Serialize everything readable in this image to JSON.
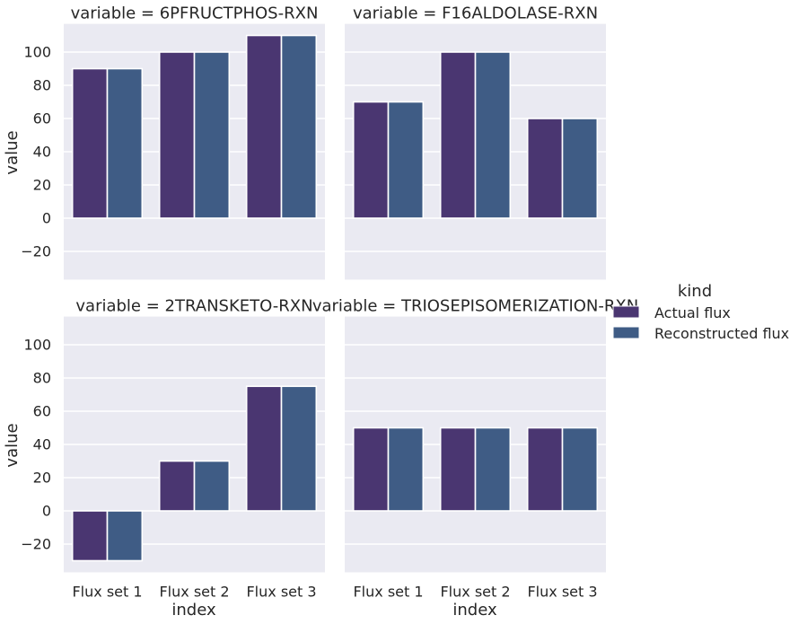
{
  "colors": {
    "panel_bg": "#EAEAF2",
    "grid": "#FFFFFF",
    "bar_edge": "#FFFFFF",
    "text": "#262626",
    "series": [
      "#4A3671",
      "#3F5C85"
    ]
  },
  "legend": {
    "title": "kind",
    "labels": [
      "Actual flux",
      "Reconstructed flux"
    ],
    "placement": "right"
  },
  "axes": {
    "xlabel": "index",
    "ylabel": "value",
    "y_ticks": [
      "−20",
      "0",
      "20",
      "40",
      "60",
      "80",
      "100"
    ],
    "x_ticks": [
      "Flux set 1",
      "Flux set 2",
      "Flux set 3"
    ]
  },
  "chart_data": [
    {
      "type": "bar",
      "title": "variable = 6PFRUCTPHOS-RXN",
      "categories": [
        "Flux set 1",
        "Flux set 2",
        "Flux set 3"
      ],
      "series": [
        {
          "name": "Actual flux",
          "values": [
            90,
            100,
            110
          ]
        },
        {
          "name": "Reconstructed flux",
          "values": [
            90,
            100,
            110
          ]
        }
      ],
      "ylim": [
        -37,
        117
      ],
      "grid": true
    },
    {
      "type": "bar",
      "title": "variable = F16ALDOLASE-RXN",
      "categories": [
        "Flux set 1",
        "Flux set 2",
        "Flux set 3"
      ],
      "series": [
        {
          "name": "Actual flux",
          "values": [
            70,
            100,
            60
          ]
        },
        {
          "name": "Reconstructed flux",
          "values": [
            70,
            100,
            60
          ]
        }
      ],
      "ylim": [
        -37,
        117
      ],
      "grid": true
    },
    {
      "type": "bar",
      "title": "variable = 2TRANSKETO-RXN",
      "categories": [
        "Flux set 1",
        "Flux set 2",
        "Flux set 3"
      ],
      "series": [
        {
          "name": "Actual flux",
          "values": [
            -30,
            30,
            75
          ]
        },
        {
          "name": "Reconstructed flux",
          "values": [
            -30,
            30,
            75
          ]
        }
      ],
      "xlabel": "index",
      "ylabel": "value",
      "ylim": [
        -37,
        117
      ],
      "grid": true
    },
    {
      "type": "bar",
      "title": "variable = TRIOSEPISOMERIZATION-RXN",
      "categories": [
        "Flux set 1",
        "Flux set 2",
        "Flux set 3"
      ],
      "series": [
        {
          "name": "Actual flux",
          "values": [
            50,
            50,
            50
          ]
        },
        {
          "name": "Reconstructed flux",
          "values": [
            50,
            50,
            50
          ]
        }
      ],
      "xlabel": "index",
      "ylim": [
        -37,
        117
      ],
      "grid": true
    }
  ]
}
